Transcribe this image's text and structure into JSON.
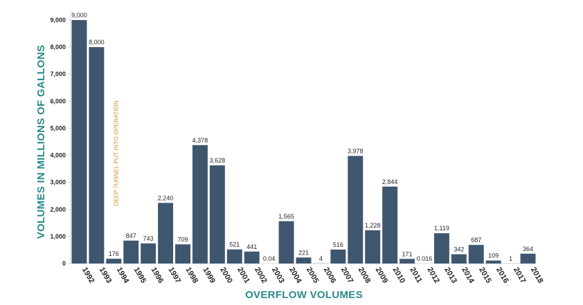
{
  "chart_data": {
    "type": "bar",
    "categories": [
      "1992",
      "1993",
      "1994",
      "1995",
      "1996",
      "1997",
      "1998",
      "1999",
      "2000",
      "2001",
      "2002",
      "2003",
      "2004",
      "2005",
      "2006",
      "2007",
      "2008",
      "2009",
      "2010",
      "2011",
      "2012",
      "2013",
      "2014",
      "2015",
      "2016",
      "2017",
      "2018"
    ],
    "values": [
      9000,
      8000,
      176,
      847,
      743,
      2240,
      709,
      4378,
      3628,
      521,
      441,
      0.04,
      1565,
      221,
      4,
      516,
      3978,
      1228,
      2844,
      171,
      0.016,
      1119,
      342,
      687,
      109,
      1,
      364
    ],
    "data_labels": [
      "9,000",
      "8,000",
      "176",
      "847",
      "743",
      "2,240",
      "709",
      "4,378",
      "3,628",
      "521",
      "441",
      "0.04",
      "1,565",
      "221",
      "4",
      "516",
      "3,978",
      "1,228",
      "2,844",
      "171",
      "0.016",
      "1,119",
      "342",
      "687",
      "109",
      "1",
      "364"
    ],
    "yticks": [
      "0",
      "1,000",
      "2,000",
      "3,000",
      "4,000",
      "5,000",
      "6,000",
      "7,000",
      "8,000",
      "9,000"
    ],
    "ylim": [
      0,
      9000
    ],
    "xlabel": "OVERFLOW VOLUMES",
    "ylabel": "VOLUMES IN MILLIONS OF GALLONS",
    "annotation": {
      "text": "DEEP TUNNEL PUT INTO OPERATION",
      "category": "1994"
    },
    "grid": false,
    "legend": "none",
    "colors": {
      "bar": "#3f566f",
      "axis_title": "#2a8a8a",
      "annotation": "#d98c2b"
    }
  }
}
